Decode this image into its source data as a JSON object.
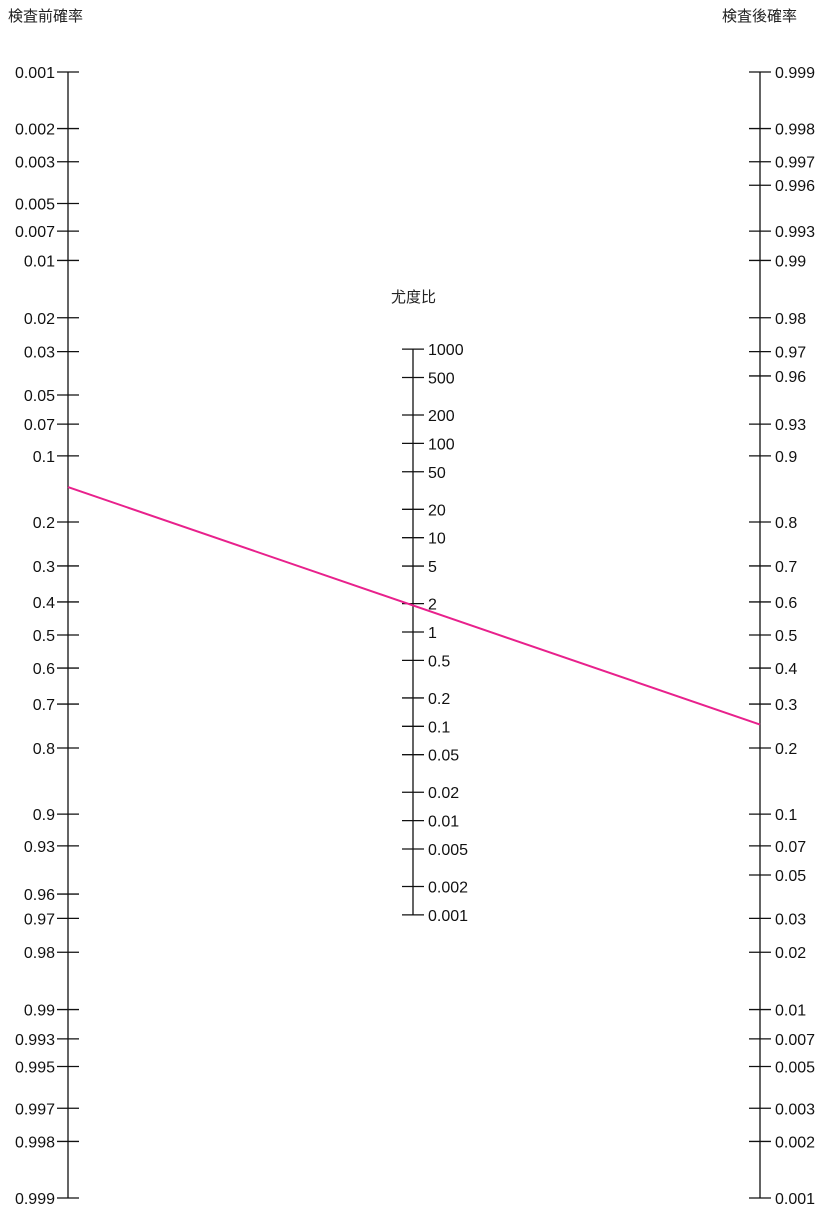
{
  "nomogram": {
    "pre_axis": {
      "title": "検査前確率",
      "ticks": [
        "0.001",
        "0.002",
        "0.003",
        "0.005",
        "0.007",
        "0.01",
        "0.02",
        "0.03",
        "0.05",
        "0.07",
        "0.1",
        "0.2",
        "0.3",
        "0.4",
        "0.5",
        "0.6",
        "0.7",
        "0.8",
        "0.9",
        "0.93",
        "0.96",
        "0.97",
        "0.98",
        "0.99",
        "0.993",
        "0.995",
        "0.997",
        "0.998",
        "0.999"
      ]
    },
    "lr_axis": {
      "title": "尤度比",
      "ticks": [
        "1000",
        "500",
        "200",
        "100",
        "50",
        "20",
        "10",
        "5",
        "2",
        "1",
        "0.5",
        "0.2",
        "0.1",
        "0.05",
        "0.02",
        "0.01",
        "0.005",
        "0.002",
        "0.001"
      ]
    },
    "post_axis": {
      "title": "検査後確率",
      "ticks": [
        "0.999",
        "0.998",
        "0.997",
        "0.996",
        "0.993",
        "0.99",
        "0.98",
        "0.97",
        "0.96",
        "0.93",
        "0.9",
        "0.8",
        "0.7",
        "0.6",
        "0.5",
        "0.4",
        "0.3",
        "0.2",
        "0.1",
        "0.07",
        "0.05",
        "0.03",
        "0.02",
        "0.01",
        "0.007",
        "0.005",
        "0.003",
        "0.002",
        "0.001"
      ]
    },
    "indicator_line": {
      "pre_test_probability": 0.14,
      "likelihood_ratio": 2,
      "post_test_probability": 0.25,
      "color": "#e8218c"
    }
  }
}
